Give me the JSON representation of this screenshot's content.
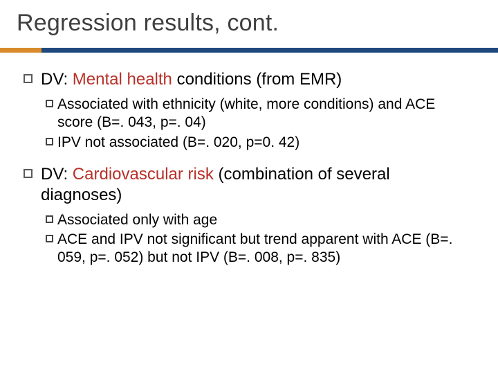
{
  "colors": {
    "title_text": "#3f3f3f",
    "accent_short": "#d98a2b",
    "accent_long": "#1f497d",
    "body_text": "#000000",
    "highlight_red": "#b83028",
    "bullet_border": "#5a5a5a",
    "background": "#ffffff"
  },
  "title": "Regression results, cont.",
  "items": [
    {
      "pre": "DV: ",
      "highlight": "Mental health ",
      "post": "conditions (from EMR)",
      "subs": [
        {
          "text": "Associated with ethnicity (white, more conditions) and ACE score (B=. 043, p=. 04)"
        },
        {
          "text": "IPV not associated (B=. 020, p=0. 42)"
        }
      ]
    },
    {
      "pre": "DV: ",
      "highlight": "Cardiovascular risk ",
      "post": "(combination of several diagnoses)",
      "subs": [
        {
          "text": "Associated only with age"
        },
        {
          "text": "ACE and IPV not significant but trend apparent with ACE (B=. 059, p=. 052) but not IPV (B=. 008, p=. 835)"
        }
      ]
    }
  ]
}
